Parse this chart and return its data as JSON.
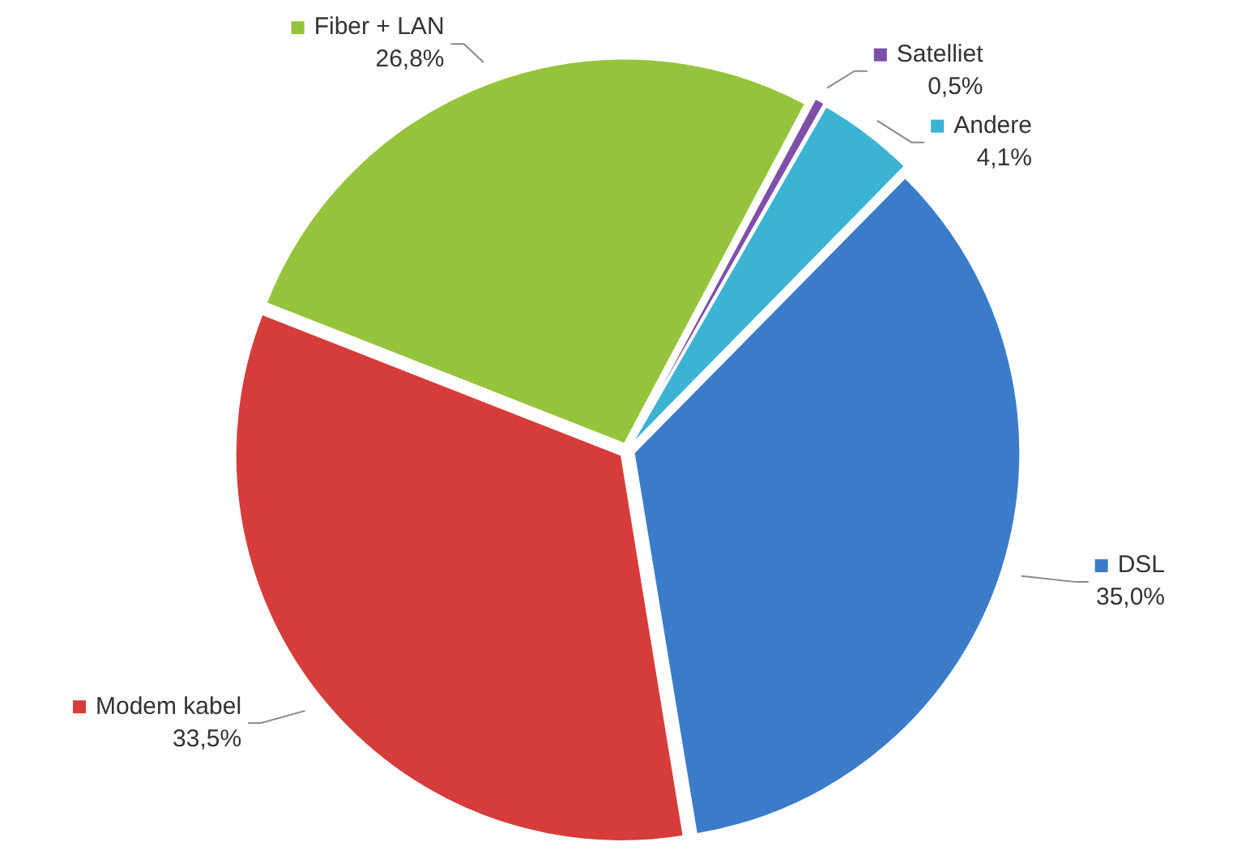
{
  "chart_data": {
    "type": "pie",
    "categories": [
      "Satelliet",
      "Andere",
      "DSL",
      "Modem kabel",
      "Fiber + LAN"
    ],
    "values": [
      0.5,
      4.1,
      35.0,
      33.5,
      26.8
    ],
    "value_labels": [
      "0,5%",
      "4,1%",
      "35,0%",
      "33,5%",
      "26,8%"
    ],
    "colors": [
      "#7e4fa8",
      "#3cb3d3",
      "#3b7cc8",
      "#d63c39",
      "#95c43c"
    ],
    "legend": "top right"
  }
}
